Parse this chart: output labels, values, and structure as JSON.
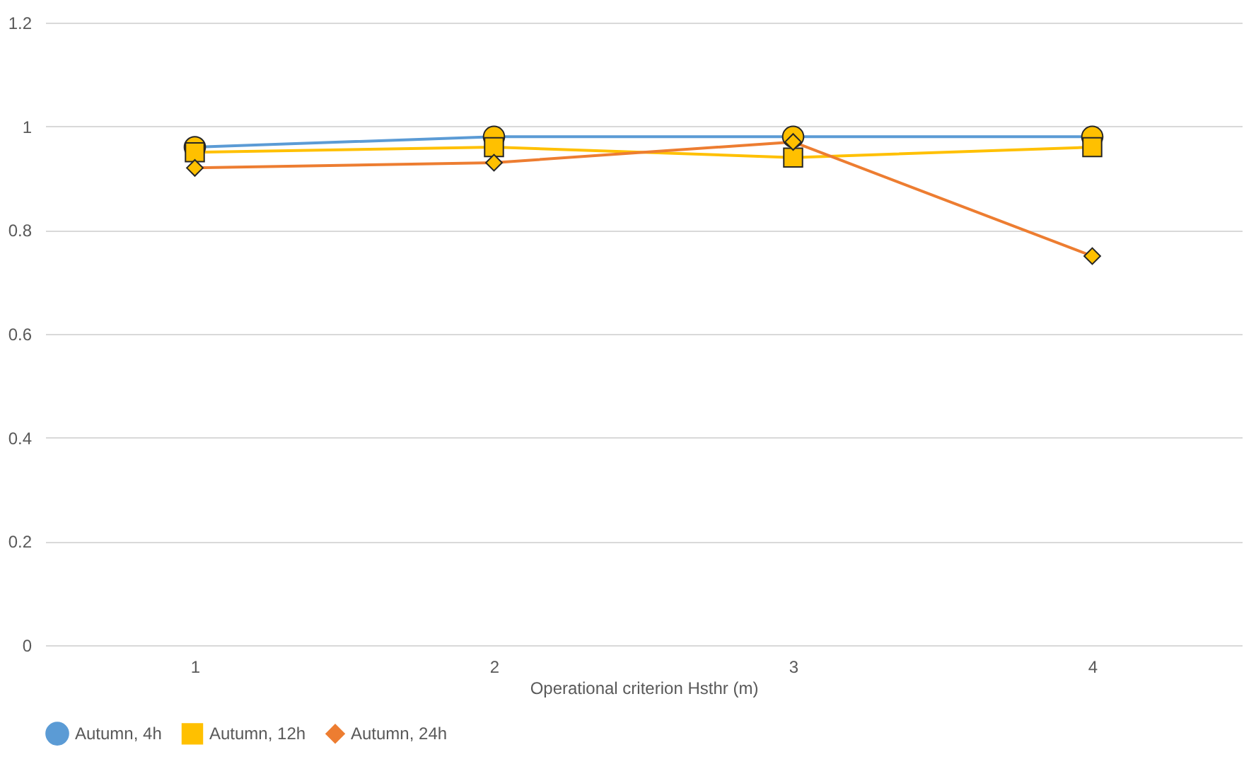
{
  "chart_data": {
    "type": "line",
    "xlabel": "Operational criterion Hsthr (m)",
    "categories": [
      "1",
      "2",
      "3",
      "4"
    ],
    "series": [
      {
        "name": "Autumn, 4h",
        "color": "#5b9bd5",
        "marker": "circle",
        "values": [
          0.96,
          0.98,
          0.98,
          0.98
        ]
      },
      {
        "name": "Autumn, 12h",
        "color": "#ffc000",
        "marker": "square",
        "values": [
          0.95,
          0.96,
          0.94,
          0.96
        ]
      },
      {
        "name": "Autumn, 24h",
        "color": "#ed7d31",
        "marker": "diamond",
        "values": [
          0.92,
          0.93,
          0.97,
          0.75
        ]
      }
    ],
    "ylim": [
      0,
      1.2
    ],
    "yticks": [
      0,
      0.2,
      0.4,
      0.6,
      0.8,
      1,
      1.2
    ],
    "grid": "y",
    "legend": "bottom"
  }
}
